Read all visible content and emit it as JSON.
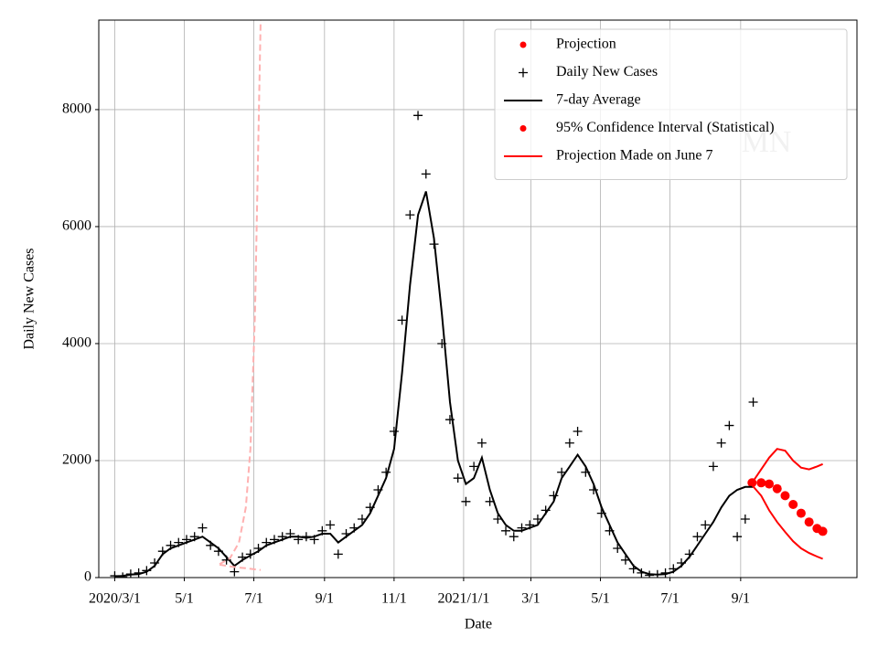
{
  "chart_data": {
    "type": "scatter",
    "xlabel": "Date",
    "ylabel": "Daily New Cases",
    "watermark": "MN",
    "xlim": [
      "2020-02-16",
      "2021-12-12"
    ],
    "ylim": [
      0,
      9530
    ],
    "xticks": [
      {
        "value": "2020-03-01",
        "label": "2020/3/1"
      },
      {
        "value": "2020-05-01",
        "label": "5/1"
      },
      {
        "value": "2020-07-01",
        "label": "7/1"
      },
      {
        "value": "2020-09-01",
        "label": "9/1"
      },
      {
        "value": "2020-11-01",
        "label": "11/1"
      },
      {
        "value": "2021-01-01",
        "label": "2021/1/1"
      },
      {
        "value": "2021-03-01",
        "label": "3/1"
      },
      {
        "value": "2021-05-01",
        "label": "5/1"
      },
      {
        "value": "2021-07-01",
        "label": "7/1"
      },
      {
        "value": "2021-09-01",
        "label": "9/1"
      }
    ],
    "yticks": [
      0,
      2000,
      4000,
      6000,
      8000
    ],
    "grid": true,
    "legend": "upper right",
    "series": [
      {
        "name": "Projection",
        "style": "dot",
        "color": "#ff0000",
        "x": [
          "2021-09-11",
          "2021-09-19",
          "2021-09-26",
          "2021-10-03",
          "2021-10-10",
          "2021-10-17",
          "2021-10-24",
          "2021-10-31",
          "2021-11-07",
          "2021-11-12"
        ],
        "values": [
          1620,
          1620,
          1600,
          1520,
          1400,
          1250,
          1100,
          950,
          840,
          790
        ]
      },
      {
        "name": "Daily New Cases",
        "style": "plus",
        "color": "#000000",
        "x": [
          "2020-03-01",
          "2020-03-08",
          "2020-03-15",
          "2020-03-22",
          "2020-03-29",
          "2020-04-05",
          "2020-04-12",
          "2020-04-19",
          "2020-04-26",
          "2020-05-03",
          "2020-05-10",
          "2020-05-17",
          "2020-05-24",
          "2020-05-31",
          "2020-06-07",
          "2020-06-14",
          "2020-06-21",
          "2020-06-28",
          "2020-07-05",
          "2020-07-12",
          "2020-07-19",
          "2020-07-26",
          "2020-08-02",
          "2020-08-09",
          "2020-08-16",
          "2020-08-23",
          "2020-08-30",
          "2020-09-06",
          "2020-09-13",
          "2020-09-20",
          "2020-09-27",
          "2020-10-04",
          "2020-10-11",
          "2020-10-18",
          "2020-10-25",
          "2020-11-01",
          "2020-11-08",
          "2020-11-15",
          "2020-11-22",
          "2020-11-29",
          "2020-12-06",
          "2020-12-13",
          "2020-12-20",
          "2020-12-27",
          "2021-01-03",
          "2021-01-10",
          "2021-01-17",
          "2021-01-24",
          "2021-01-31",
          "2021-02-07",
          "2021-02-14",
          "2021-02-21",
          "2021-02-28",
          "2021-03-07",
          "2021-03-14",
          "2021-03-21",
          "2021-03-28",
          "2021-04-04",
          "2021-04-11",
          "2021-04-18",
          "2021-04-25",
          "2021-05-02",
          "2021-05-09",
          "2021-05-16",
          "2021-05-23",
          "2021-05-30",
          "2021-06-06",
          "2021-06-13",
          "2021-06-20",
          "2021-06-27",
          "2021-07-04",
          "2021-07-11",
          "2021-07-18",
          "2021-07-25",
          "2021-08-01",
          "2021-08-08",
          "2021-08-15",
          "2021-08-22",
          "2021-08-29",
          "2021-09-05",
          "2021-09-12"
        ],
        "values": [
          30,
          10,
          60,
          80,
          120,
          250,
          450,
          550,
          600,
          650,
          700,
          850,
          550,
          450,
          300,
          100,
          350,
          400,
          500,
          600,
          650,
          700,
          750,
          650,
          700,
          650,
          800,
          900,
          400,
          750,
          850,
          1000,
          1200,
          1500,
          1800,
          2500,
          4400,
          6200,
          7900,
          6900,
          5700,
          4000,
          2700,
          1700,
          1300,
          1900,
          2300,
          1300,
          1000,
          800,
          700,
          850,
          900,
          1000,
          1150,
          1400,
          1800,
          2300,
          2500,
          1800,
          1500,
          1100,
          800,
          500,
          300,
          150,
          80,
          40,
          50,
          80,
          150,
          250,
          400,
          700,
          900,
          1900,
          2300,
          2600,
          700,
          1000,
          3000
        ]
      },
      {
        "name": "7-day Average",
        "style": "line",
        "color": "#000000",
        "x": [
          "2020-03-01",
          "2020-03-08",
          "2020-03-15",
          "2020-03-22",
          "2020-03-29",
          "2020-04-05",
          "2020-04-12",
          "2020-04-19",
          "2020-04-26",
          "2020-05-03",
          "2020-05-10",
          "2020-05-17",
          "2020-05-24",
          "2020-05-31",
          "2020-06-07",
          "2020-06-14",
          "2020-06-21",
          "2020-06-28",
          "2020-07-05",
          "2020-07-12",
          "2020-07-19",
          "2020-07-26",
          "2020-08-02",
          "2020-08-09",
          "2020-08-16",
          "2020-08-23",
          "2020-08-30",
          "2020-09-06",
          "2020-09-13",
          "2020-09-20",
          "2020-09-27",
          "2020-10-04",
          "2020-10-11",
          "2020-10-18",
          "2020-10-25",
          "2020-11-01",
          "2020-11-08",
          "2020-11-15",
          "2020-11-22",
          "2020-11-29",
          "2020-12-06",
          "2020-12-13",
          "2020-12-20",
          "2020-12-27",
          "2021-01-03",
          "2021-01-10",
          "2021-01-17",
          "2021-01-24",
          "2021-01-31",
          "2021-02-07",
          "2021-02-14",
          "2021-02-21",
          "2021-02-28",
          "2021-03-07",
          "2021-03-14",
          "2021-03-21",
          "2021-03-28",
          "2021-04-04",
          "2021-04-11",
          "2021-04-18",
          "2021-04-25",
          "2021-05-02",
          "2021-05-09",
          "2021-05-16",
          "2021-05-23",
          "2021-05-30",
          "2021-06-06",
          "2021-06-13",
          "2021-06-20",
          "2021-06-27",
          "2021-07-04",
          "2021-07-11",
          "2021-07-18",
          "2021-07-25",
          "2021-08-01",
          "2021-08-08",
          "2021-08-15",
          "2021-08-22",
          "2021-08-29",
          "2021-09-05",
          "2021-09-12"
        ],
        "values": [
          20,
          30,
          50,
          60,
          100,
          200,
          400,
          500,
          550,
          600,
          650,
          700,
          600,
          500,
          350,
          200,
          300,
          380,
          450,
          550,
          600,
          650,
          700,
          700,
          680,
          700,
          750,
          750,
          600,
          700,
          800,
          900,
          1100,
          1400,
          1700,
          2200,
          3500,
          5000,
          6200,
          6600,
          5800,
          4500,
          3000,
          2000,
          1600,
          1700,
          2050,
          1500,
          1100,
          900,
          800,
          800,
          850,
          900,
          1100,
          1300,
          1700,
          1900,
          2100,
          1900,
          1600,
          1200,
          900,
          600,
          400,
          200,
          100,
          60,
          50,
          60,
          100,
          200,
          350,
          550,
          750,
          950,
          1200,
          1400,
          1500,
          1550,
          1550
        ]
      },
      {
        "name": "95% Confidence Interval (Statistical)",
        "style": "dot",
        "color": "#ff0000",
        "x": [
          "2021-09-11",
          "2021-09-19",
          "2021-09-26",
          "2021-10-03",
          "2021-10-10",
          "2021-10-17",
          "2021-10-24",
          "2021-10-31",
          "2021-11-07",
          "2021-11-12"
        ],
        "upper": [
          1620,
          1850,
          2050,
          2200,
          2170,
          2000,
          1880,
          1850,
          1900,
          1940
        ],
        "lower": [
          1580,
          1400,
          1150,
          950,
          780,
          620,
          500,
          420,
          360,
          320
        ]
      },
      {
        "name": "Projection Made on June 7",
        "style": "line",
        "color": "#ff0000",
        "band_color": "#ffb0b0",
        "dashed": true,
        "x": [
          "2020-06-01",
          "2020-06-10",
          "2020-06-18",
          "2020-06-24",
          "2020-06-28",
          "2020-07-02",
          "2020-07-05",
          "2020-07-07"
        ],
        "upper": [
          230,
          330,
          600,
          1200,
          2200,
          4500,
          7500,
          9530
        ],
        "lower": [
          220,
          190,
          170,
          160,
          150,
          140,
          135,
          130
        ]
      }
    ]
  }
}
